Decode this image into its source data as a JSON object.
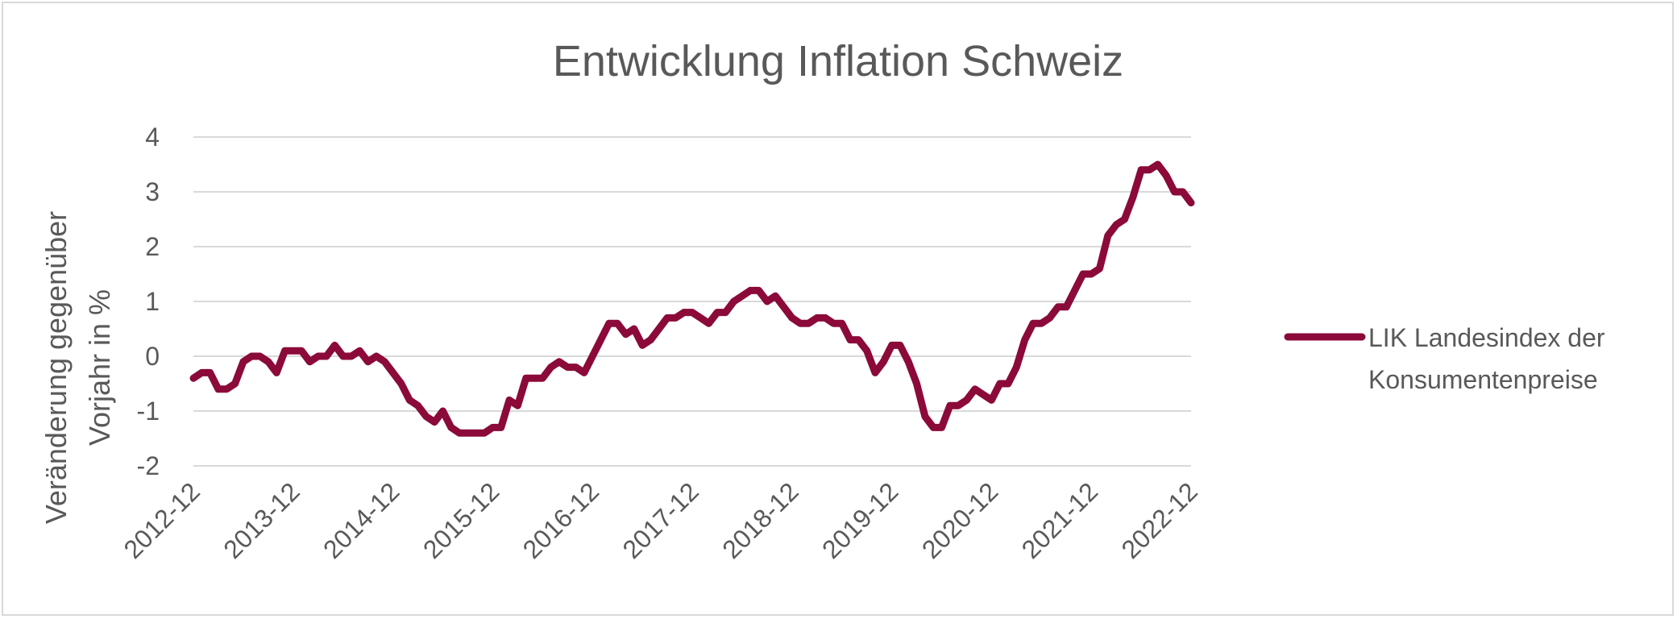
{
  "chart_data": {
    "type": "line",
    "title": "Entwicklung Inflation Schweiz",
    "ylabel_lines": [
      "Veränderung gegenüber",
      "Vorjahr in %"
    ],
    "xlabel": "",
    "ylim": [
      -2,
      4
    ],
    "yticks": [
      "4",
      "3",
      "2",
      "1",
      "0",
      "-1",
      "-2"
    ],
    "xtick_labels": [
      "2012-12",
      "2013-12",
      "2014-12",
      "2015-12",
      "2016-12",
      "2017-12",
      "2018-12",
      "2019-12",
      "2020-12",
      "2021-12",
      "2022-12"
    ],
    "x_start": "2012-12",
    "x_end": "2022-12",
    "grid": true,
    "legend_position": "right",
    "series": [
      {
        "name_lines": [
          "LIK Landesindex der",
          "Konsumentenpreise"
        ],
        "color": "#8b0a3a",
        "values": [
          -0.4,
          -0.3,
          -0.3,
          -0.6,
          -0.6,
          -0.5,
          -0.1,
          0.0,
          0.0,
          -0.1,
          -0.3,
          0.1,
          0.1,
          0.1,
          -0.1,
          0.0,
          0.0,
          0.2,
          0.0,
          0.0,
          0.1,
          -0.1,
          0.0,
          -0.1,
          -0.3,
          -0.5,
          -0.8,
          -0.9,
          -1.1,
          -1.2,
          -1.0,
          -1.3,
          -1.4,
          -1.4,
          -1.4,
          -1.4,
          -1.3,
          -1.3,
          -0.8,
          -0.9,
          -0.4,
          -0.4,
          -0.4,
          -0.2,
          -0.1,
          -0.2,
          -0.2,
          -0.3,
          0.0,
          0.3,
          0.6,
          0.6,
          0.4,
          0.5,
          0.2,
          0.3,
          0.5,
          0.7,
          0.7,
          0.8,
          0.8,
          0.7,
          0.6,
          0.8,
          0.8,
          1.0,
          1.1,
          1.2,
          1.2,
          1.0,
          1.1,
          0.9,
          0.7,
          0.6,
          0.6,
          0.7,
          0.7,
          0.6,
          0.6,
          0.3,
          0.3,
          0.1,
          -0.3,
          -0.1,
          0.2,
          0.2,
          -0.1,
          -0.5,
          -1.1,
          -1.3,
          -1.3,
          -0.9,
          -0.9,
          -0.8,
          -0.6,
          -0.7,
          -0.8,
          -0.5,
          -0.5,
          -0.2,
          0.3,
          0.6,
          0.6,
          0.7,
          0.9,
          0.9,
          1.2,
          1.5,
          1.5,
          1.6,
          2.2,
          2.4,
          2.5,
          2.9,
          3.4,
          3.4,
          3.5,
          3.3,
          3.0,
          3.0,
          2.8
        ]
      }
    ]
  }
}
